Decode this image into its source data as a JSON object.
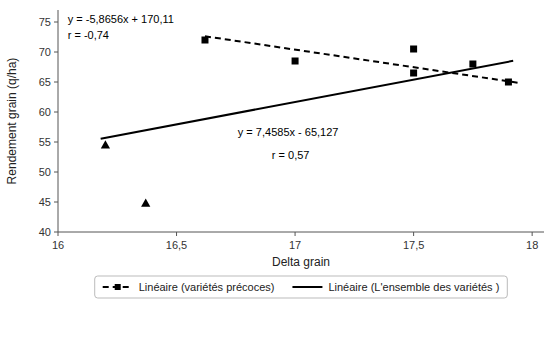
{
  "chart_data": {
    "type": "scatter",
    "color": "black",
    "xlabel": "Delta grain",
    "ylabel": "Rendement grain (q/ha)",
    "xlim": [
      16.0,
      18.05
    ],
    "ylim": [
      40,
      77
    ],
    "xticks": [
      16,
      {
        "value": 16.5,
        "label": "16,5"
      },
      17,
      {
        "value": 17.5,
        "label": "17,5"
      },
      18
    ],
    "yticks": [
      40,
      45,
      50,
      55,
      60,
      65,
      70,
      75
    ],
    "grid": false,
    "legend": "bottom",
    "series": [
      {
        "type": "scatter",
        "marker": "square",
        "color": "black",
        "x": [
          16.62,
          17.0,
          17.5,
          17.5,
          17.75,
          17.9
        ],
        "values": [
          72.0,
          68.5,
          70.5,
          66.5,
          68.0,
          65.0
        ]
      },
      {
        "type": "scatter",
        "marker": "triangle",
        "color": "black",
        "x": [
          16.2,
          16.37
        ],
        "values": [
          54.5,
          44.8
        ]
      },
      {
        "name": "Linéaire (variétés précoces)",
        "type": "line",
        "line_style": "dashed",
        "marker": "square",
        "color": "black",
        "x": [
          16.62,
          17.95
        ],
        "values": [
          72.623728,
          64.82248
        ]
      },
      {
        "name": "Linéaire (L'ensemble des variétés )",
        "type": "line",
        "line_style": "solid",
        "color": "black",
        "x": [
          16.18,
          17.92
        ],
        "values": [
          55.55153,
          68.52932
        ]
      }
    ],
    "annotations": [
      "y = -5,8656x + 170,11",
      "r = -0,74",
      "y = 7,4585x - 65,127",
      "r = 0,57"
    ]
  }
}
